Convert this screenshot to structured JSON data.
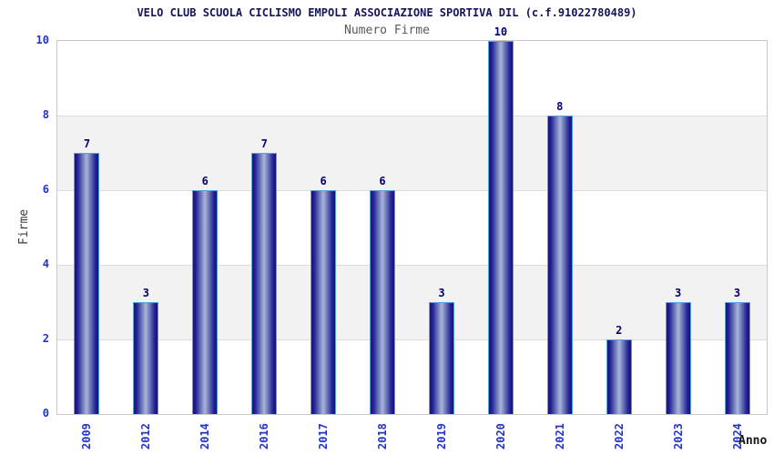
{
  "chart_data": {
    "type": "bar",
    "title": "VELO CLUB SCUOLA CICLISMO EMPOLI ASSOCIAZIONE SPORTIVA DIL (c.f.91022780489)",
    "subtitle": "Numero Firme",
    "xlabel": "Anno",
    "ylabel": "Firme",
    "categories": [
      "2009",
      "2012",
      "2014",
      "2016",
      "2017",
      "2018",
      "2019",
      "2020",
      "2021",
      "2022",
      "2023",
      "2024"
    ],
    "values": [
      7,
      3,
      6,
      7,
      6,
      6,
      3,
      10,
      8,
      2,
      3,
      3
    ],
    "ylim": [
      0,
      10
    ],
    "yticks": [
      0,
      2,
      4,
      6,
      8,
      10
    ],
    "legend": "none",
    "grid": "alternating-horizontal-bands",
    "colors": {
      "bar_edge": "#15156e",
      "bar_center": "#aab4dc",
      "bar_border": "#58a0e0",
      "axis_tick_text": "#2233cc",
      "value_label_text": "#00006a",
      "title_text": "#14145a",
      "subtitle_text": "#595959",
      "band_fill": "#f2f2f2",
      "plot_border": "#c9c9c9",
      "background": "#ffffff"
    }
  }
}
